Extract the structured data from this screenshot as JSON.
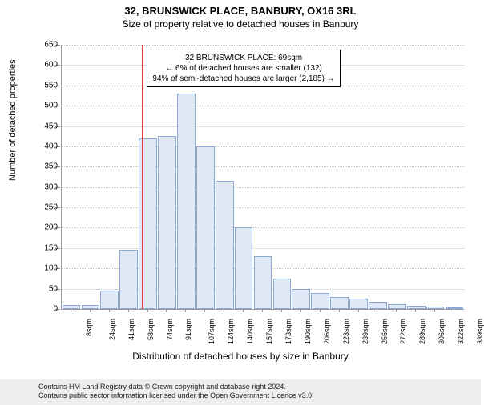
{
  "title": "32, BRUNSWICK PLACE, BANBURY, OX16 3RL",
  "subtitle": "Size of property relative to detached houses in Banbury",
  "y_axis_title": "Number of detached properties",
  "x_axis_title": "Distribution of detached houses by size in Banbury",
  "footer_line1": "Contains HM Land Registry data © Crown copyright and database right 2024.",
  "footer_line2": "Contains public sector information licensed under the Open Government Licence v3.0.",
  "chart": {
    "type": "histogram",
    "background_color": "#ffffff",
    "grid_color": "#c0c0c0",
    "axis_color": "#999999",
    "bar_fill": "#e0e8f5",
    "bar_border": "#8caad6",
    "ref_line_color": "#d84040",
    "ylim": [
      0,
      650
    ],
    "ytick_step": 50,
    "x_categories": [
      "8sqm",
      "24sqm",
      "41sqm",
      "58sqm",
      "74sqm",
      "91sqm",
      "107sqm",
      "124sqm",
      "140sqm",
      "157sqm",
      "173sqm",
      "190sqm",
      "206sqm",
      "223sqm",
      "239sqm",
      "256sqm",
      "272sqm",
      "289sqm",
      "306sqm",
      "322sqm",
      "339sqm"
    ],
    "bar_values": [
      10,
      10,
      45,
      145,
      420,
      425,
      530,
      400,
      315,
      200,
      130,
      75,
      50,
      40,
      30,
      25,
      18,
      12,
      8,
      5,
      3
    ],
    "ref_line_index": 3.7,
    "info_box": {
      "line1": "32 BRUNSWICK PLACE: 69sqm",
      "line2": "← 6% of detached houses are smaller (132)",
      "line3": "94% of semi-detached houses are larger (2,185) →"
    }
  }
}
